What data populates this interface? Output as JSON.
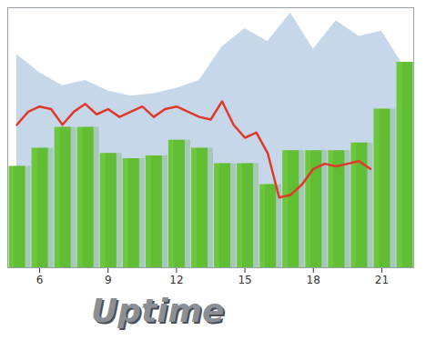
{
  "chart_data": {
    "type": "combo",
    "title": "Uptime",
    "xlim": [
      4.6,
      22.4
    ],
    "xticks": [
      6,
      9,
      12,
      15,
      18,
      21
    ],
    "ylim": [
      0,
      100
    ],
    "tick_labels": "x",
    "series": [
      {
        "type": "area",
        "color": "#c7d7ea",
        "x": [
          5,
          6,
          7,
          8,
          9,
          10,
          11,
          12,
          13,
          14,
          15,
          16,
          17,
          18,
          19,
          20,
          21,
          22
        ],
        "values": [
          82,
          75,
          70,
          72,
          68,
          66,
          67,
          69,
          72,
          85,
          92,
          87,
          98,
          84,
          95,
          89,
          91,
          77
        ]
      },
      {
        "type": "bar",
        "color": "#6cc83a",
        "x": [
          5,
          6,
          7,
          8,
          9,
          10,
          11,
          12,
          13,
          14,
          15,
          16,
          17,
          18,
          19,
          20,
          21,
          22
        ],
        "values": [
          39,
          46,
          54,
          54,
          44,
          42,
          43,
          49,
          46,
          40,
          40,
          32,
          45,
          45,
          45,
          48,
          61,
          79
        ]
      },
      {
        "type": "line",
        "color": "#e0392a",
        "x": [
          5,
          5.5,
          6,
          6.5,
          7,
          7.5,
          8,
          8.5,
          9,
          9.5,
          10,
          10.5,
          11,
          11.5,
          12,
          12.5,
          13,
          13.5,
          14,
          14.5,
          15,
          15.5,
          16,
          16.5,
          17,
          17.5,
          18,
          18.5,
          19,
          19.5,
          20,
          20.5
        ],
        "values": [
          55,
          60,
          62,
          61,
          55,
          60,
          63,
          59,
          61,
          58,
          60,
          62,
          58,
          61,
          62,
          60,
          58,
          57,
          64,
          55,
          50,
          52,
          44,
          27,
          28,
          32,
          38,
          40,
          39,
          40,
          41,
          38
        ]
      }
    ]
  }
}
